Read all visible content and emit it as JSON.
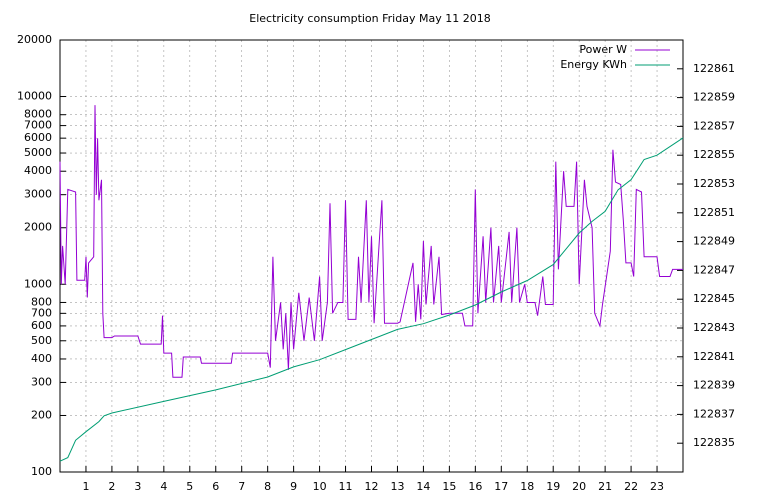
{
  "chart_data": {
    "type": "line",
    "title": "Electricity consumption Friday May 11 2018",
    "xlim": [
      0,
      24
    ],
    "xticks": [
      1,
      2,
      3,
      4,
      5,
      6,
      7,
      8,
      9,
      10,
      11,
      12,
      13,
      14,
      15,
      16,
      17,
      18,
      19,
      20,
      21,
      22,
      23
    ],
    "ylim": [
      100,
      20000
    ],
    "yscale": "log",
    "yticks": [
      100,
      200,
      300,
      400,
      500,
      600,
      700,
      800,
      1000,
      2000,
      3000,
      4000,
      5000,
      6000,
      7000,
      8000,
      10000,
      20000
    ],
    "y2lim": [
      122833,
      122863
    ],
    "y2ticks": [
      122835,
      122837,
      122839,
      122841,
      122843,
      122845,
      122847,
      122849,
      122851,
      122853,
      122855,
      122857,
      122859,
      122861
    ],
    "grid": true,
    "legend": "top-right",
    "series": [
      {
        "name": "Power W",
        "color": "#9400d3",
        "x": [
          0,
          0.05,
          0.1,
          0.2,
          0.3,
          0.6,
          0.65,
          0.95,
          1.0,
          1.05,
          1.1,
          1.3,
          1.35,
          1.4,
          1.45,
          1.5,
          1.6,
          1.65,
          1.7,
          2.0,
          2.1,
          3.0,
          3.1,
          3.9,
          3.95,
          4.0,
          4.3,
          4.35,
          4.7,
          4.75,
          5.4,
          5.45,
          6.6,
          6.65,
          8.0,
          8.1,
          8.2,
          8.3,
          8.5,
          8.6,
          8.7,
          8.8,
          8.9,
          9.0,
          9.2,
          9.4,
          9.6,
          9.8,
          10.0,
          10.1,
          10.3,
          10.4,
          10.5,
          10.7,
          10.9,
          11.0,
          11.1,
          11.4,
          11.5,
          11.6,
          11.8,
          11.9,
          12.0,
          12.1,
          12.4,
          12.5,
          13.0,
          13.1,
          13.6,
          13.7,
          13.8,
          13.9,
          14.0,
          14.1,
          14.3,
          14.4,
          14.6,
          14.7,
          15.0,
          15.2,
          15.5,
          15.6,
          15.9,
          16.0,
          16.1,
          16.3,
          16.4,
          16.6,
          16.7,
          16.9,
          17.0,
          17.3,
          17.4,
          17.6,
          17.7,
          17.9,
          18.0,
          18.3,
          18.4,
          18.6,
          18.7,
          19.0,
          19.1,
          19.2,
          19.4,
          19.5,
          19.8,
          19.9,
          20.0,
          20.2,
          20.3,
          20.5,
          20.6,
          20.8,
          20.9,
          21.2,
          21.3,
          21.4,
          21.6,
          21.7,
          21.8,
          22.0,
          22.1,
          22.2,
          22.4,
          22.5,
          23.0,
          23.1,
          23.5,
          23.6,
          24.0
        ],
        "values": [
          4500,
          1000,
          1600,
          1000,
          3200,
          3100,
          1050,
          1050,
          1400,
          850,
          1300,
          1400,
          9000,
          3000,
          6000,
          2800,
          3600,
          700,
          520,
          520,
          530,
          530,
          480,
          480,
          680,
          430,
          430,
          320,
          320,
          410,
          410,
          380,
          380,
          430,
          430,
          360,
          1400,
          500,
          800,
          450,
          700,
          350,
          800,
          450,
          900,
          500,
          850,
          500,
          1100,
          500,
          800,
          2700,
          700,
          800,
          800,
          2800,
          650,
          650,
          1400,
          800,
          2800,
          800,
          1800,
          620,
          2800,
          620,
          620,
          630,
          1300,
          630,
          1000,
          650,
          1700,
          780,
          1600,
          780,
          1400,
          690,
          700,
          700,
          700,
          600,
          600,
          3200,
          700,
          1800,
          800,
          2000,
          800,
          1600,
          800,
          1900,
          800,
          2000,
          800,
          1000,
          800,
          800,
          680,
          1100,
          780,
          780,
          4500,
          1200,
          4000,
          2600,
          2600,
          4500,
          1000,
          3600,
          2600,
          2000,
          700,
          600,
          780,
          1500,
          5200,
          3500,
          3400,
          2200,
          1300,
          1300,
          1100,
          3200,
          3100,
          1400,
          1400,
          1100,
          1100,
          1200,
          1200
        ]
      },
      {
        "name": "Energy KWh",
        "color": "#009e73",
        "axis": "y2",
        "x": [
          0,
          0.3,
          0.6,
          1.0,
          1.5,
          1.7,
          2.0,
          4.0,
          6.0,
          8.0,
          9.0,
          10.0,
          11.0,
          12.0,
          13.0,
          14.0,
          15.0,
          16.0,
          17.0,
          18.0,
          19.0,
          19.5,
          20.0,
          20.5,
          21.0,
          21.5,
          22.0,
          22.5,
          23.0,
          24.0
        ],
        "values": [
          122833.75,
          122834.0,
          122835.2,
          122835.8,
          122836.5,
          122836.9,
          122837.1,
          122837.9,
          122838.7,
          122839.6,
          122840.3,
          122840.8,
          122841.5,
          122842.2,
          122842.9,
          122843.3,
          122843.9,
          122844.6,
          122845.5,
          122846.3,
          122847.4,
          122848.5,
          122849.6,
          122850.4,
          122851.1,
          122852.6,
          122853.3,
          122854.7,
          122855.0,
          122856.2
        ]
      }
    ]
  }
}
